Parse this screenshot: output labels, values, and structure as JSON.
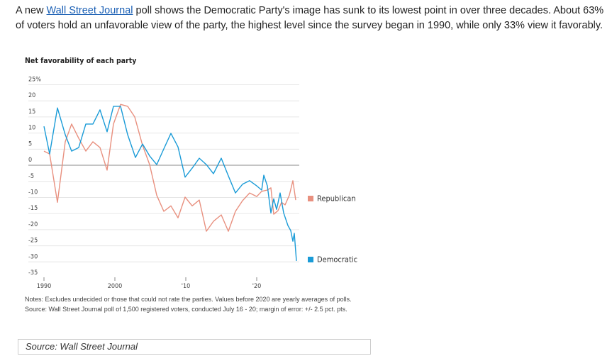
{
  "intro": {
    "before": "A new ",
    "link": "Wall Street Journal",
    "after": " poll shows the Democratic Party's image has sunk to its lowest point in over three decades. About 63% of voters hold an unfavorable view of the party, the highest level since the survey began in 1990, while only 33% view it favorably."
  },
  "chart_data": {
    "type": "line",
    "title": "Net favorability of each party",
    "xlim": [
      1988,
      2026
    ],
    "xticks": [
      1990,
      2000,
      {
        "value": 2010,
        "label": "'10"
      },
      {
        "value": 2020,
        "label": "'20"
      }
    ],
    "ylim": [
      -35,
      25
    ],
    "yticks": [
      {
        "value": 25,
        "label": "25%"
      },
      20,
      15,
      10,
      5,
      0,
      -5,
      -10,
      -15,
      -20,
      -25,
      -30,
      -35
    ],
    "grid": true,
    "series": [
      {
        "name": "Republican",
        "color": "#e8907f",
        "x": [
          1990,
          1990.8,
          1991.9,
          1993,
          1993.9,
          1994.9,
          1995.9,
          1996.9,
          1997.9,
          1998.9,
          1999.8,
          2000.8,
          2001.8,
          2002.8,
          2003.9,
          2004.9,
          2005.9,
          2006.9,
          2007.9,
          2008.9,
          2009.9,
          2010.9,
          2011.9,
          2012.9,
          2013.9,
          2015,
          2016,
          2017,
          2018,
          2019,
          2020,
          2020.7,
          2021.5,
          2022,
          2022.4,
          2023,
          2023.5,
          2024,
          2024.6,
          2025.1,
          2025.5
        ],
        "values": [
          4.4,
          3.5,
          -11.5,
          7.3,
          12.8,
          8.4,
          4.4,
          7.3,
          5.5,
          -1.5,
          12.8,
          18.9,
          18.3,
          15.0,
          6.2,
          0.2,
          -9.3,
          -14.3,
          -12.6,
          -16.3,
          -9.9,
          -12.6,
          -10.8,
          -20.5,
          -17.4,
          -15.4,
          -20.5,
          -14.3,
          -11.0,
          -8.6,
          -9.7,
          -8.1,
          -7.7,
          -7.0,
          -15.2,
          -14.1,
          -11.5,
          -12.3,
          -9.3,
          -4.8,
          -10.8
        ]
      },
      {
        "name": "Democratic",
        "color": "#1a9bd7",
        "x": [
          1990,
          1990.8,
          1991.9,
          1993,
          1993.9,
          1994.9,
          1995.9,
          1996.9,
          1997.9,
          1998.9,
          1999.8,
          2000.8,
          2001.8,
          2002.9,
          2003.9,
          2004.9,
          2005.9,
          2006.9,
          2007.9,
          2008.9,
          2009.9,
          2010.9,
          2011.9,
          2012.9,
          2013.9,
          2015,
          2016,
          2017,
          2018,
          2019,
          2020,
          2020.7,
          2021,
          2021.5,
          2022,
          2022.4,
          2022.8,
          2023.3,
          2023.8,
          2024.4,
          2024.8,
          2025.1,
          2025.3,
          2025.6
        ],
        "values": [
          12.1,
          3.5,
          17.8,
          9.5,
          4.4,
          5.5,
          12.8,
          12.8,
          17.2,
          10.4,
          18.3,
          18.3,
          9.5,
          2.4,
          6.6,
          2.9,
          0.2,
          5.1,
          9.9,
          5.7,
          -3.7,
          -0.9,
          2.2,
          0.2,
          -2.6,
          2.2,
          -3.3,
          -8.6,
          -5.9,
          -4.8,
          -6.4,
          -7.7,
          -3.1,
          -6.4,
          -14.8,
          -10.4,
          -13.7,
          -8.6,
          -14.8,
          -18.7,
          -20.3,
          -23.6,
          -21.1,
          -29.7
        ]
      }
    ]
  },
  "notes": [
    "Notes: Excludes undecided or those that could not rate the parties. Values before 2020 are yearly averages of polls.",
    "Source: Wall Street Journal poll of 1,500 registered voters, conducted July 16 - 20; margin of error: +/- 2.5 pct. pts."
  ],
  "source": "Source: Wall Street Journal"
}
